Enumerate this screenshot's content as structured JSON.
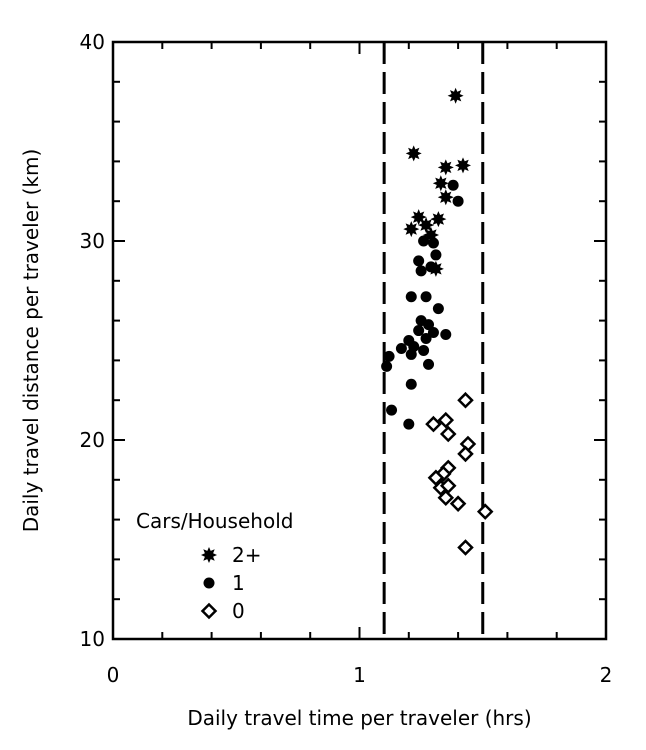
{
  "chart_data": {
    "type": "scatter",
    "title": "",
    "xlabel": "Daily travel time per traveler (hrs)",
    "ylabel": "Daily travel distance per traveler (km)",
    "xlim": [
      0,
      2
    ],
    "ylim": [
      10,
      40
    ],
    "xticks": [
      "0",
      "1",
      "2"
    ],
    "yticks": [
      "10",
      "20",
      "30",
      "40"
    ],
    "grid": false,
    "reference_lines_x": [
      1.1,
      1.5
    ],
    "legend": {
      "title": "Cars/Household",
      "placement": "bottom-left"
    },
    "series": [
      {
        "name": "2+",
        "marker": "star",
        "points": [
          [
            1.39,
            37.3
          ],
          [
            1.22,
            34.4
          ],
          [
            1.35,
            33.7
          ],
          [
            1.42,
            33.8
          ],
          [
            1.33,
            32.9
          ],
          [
            1.35,
            32.2
          ],
          [
            1.24,
            31.2
          ],
          [
            1.29,
            30.3
          ],
          [
            1.32,
            31.1
          ],
          [
            1.21,
            30.6
          ],
          [
            1.27,
            30.8
          ],
          [
            1.31,
            28.6
          ]
        ]
      },
      {
        "name": "1",
        "marker": "circle",
        "points": [
          [
            1.38,
            32.8
          ],
          [
            1.4,
            32.0
          ],
          [
            1.26,
            30.0
          ],
          [
            1.3,
            29.9
          ],
          [
            1.24,
            29.0
          ],
          [
            1.31,
            29.3
          ],
          [
            1.25,
            28.5
          ],
          [
            1.29,
            28.7
          ],
          [
            1.21,
            27.2
          ],
          [
            1.27,
            27.2
          ],
          [
            1.32,
            26.6
          ],
          [
            1.25,
            26.0
          ],
          [
            1.28,
            25.8
          ],
          [
            1.24,
            25.5
          ],
          [
            1.3,
            25.4
          ],
          [
            1.35,
            25.3
          ],
          [
            1.2,
            25.0
          ],
          [
            1.27,
            25.1
          ],
          [
            1.22,
            24.7
          ],
          [
            1.26,
            24.5
          ],
          [
            1.17,
            24.6
          ],
          [
            1.12,
            24.2
          ],
          [
            1.21,
            24.3
          ],
          [
            1.11,
            23.7
          ],
          [
            1.28,
            23.8
          ],
          [
            1.21,
            22.8
          ],
          [
            1.13,
            21.5
          ],
          [
            1.2,
            20.8
          ]
        ]
      },
      {
        "name": "0",
        "marker": "diamond",
        "points": [
          [
            1.43,
            22.0
          ],
          [
            1.35,
            21.0
          ],
          [
            1.3,
            20.8
          ],
          [
            1.36,
            20.3
          ],
          [
            1.44,
            19.8
          ],
          [
            1.43,
            19.3
          ],
          [
            1.36,
            18.6
          ],
          [
            1.34,
            18.3
          ],
          [
            1.31,
            18.1
          ],
          [
            1.33,
            17.6
          ],
          [
            1.36,
            17.7
          ],
          [
            1.35,
            17.1
          ],
          [
            1.4,
            16.8
          ],
          [
            1.51,
            16.4
          ],
          [
            1.43,
            14.6
          ]
        ]
      }
    ]
  }
}
